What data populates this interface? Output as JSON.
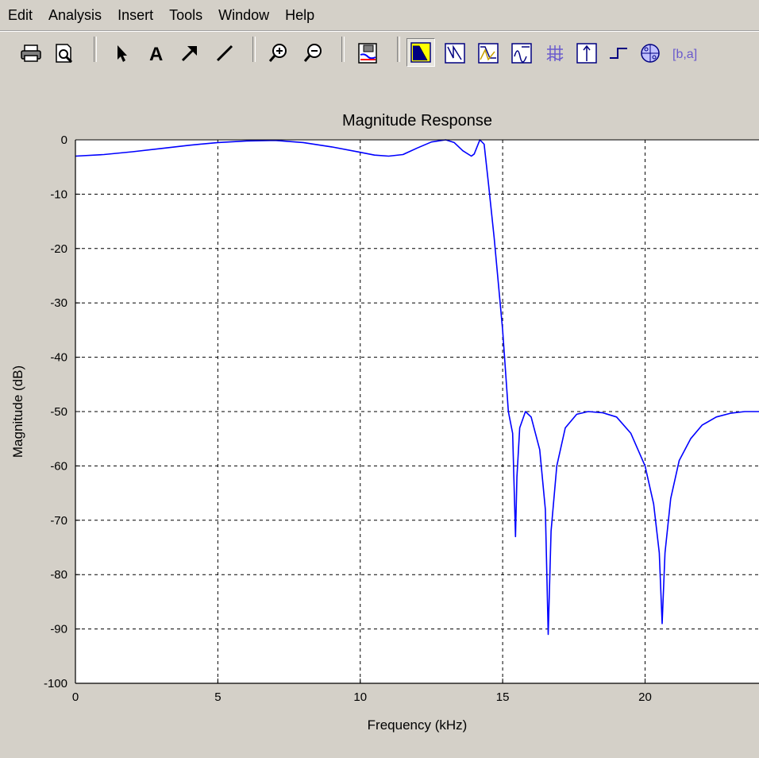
{
  "menubar": {
    "items": [
      "Edit",
      "Analysis",
      "Insert",
      "Tools",
      "Window",
      "Help"
    ]
  },
  "toolbar": {
    "buttons": [
      {
        "name": "print-icon"
      },
      {
        "name": "print-preview-icon"
      },
      {
        "name": "select-arrow-icon"
      },
      {
        "name": "insert-text-icon",
        "glyph": "A"
      },
      {
        "name": "insert-arrow-icon"
      },
      {
        "name": "insert-line-icon"
      },
      {
        "name": "zoom-in-icon"
      },
      {
        "name": "zoom-out-icon"
      },
      {
        "name": "filter-specs-icon"
      },
      {
        "name": "magnitude-response-icon",
        "pressed": true
      },
      {
        "name": "phase-response-icon"
      },
      {
        "name": "magnitude-phase-icon"
      },
      {
        "name": "group-delay-icon"
      },
      {
        "name": "impulse-response-icon"
      },
      {
        "name": "step-response-icon"
      },
      {
        "name": "pole-zero-icon"
      },
      {
        "name": "filter-coefficients-icon",
        "glyph": "[b,a]"
      }
    ],
    "accent": "#0000ff",
    "highlight": "#ffff00"
  },
  "chart_data": {
    "type": "line",
    "title": "Magnitude Response",
    "xlabel": "Frequency (kHz)",
    "ylabel": "Magnitude (dB)",
    "xlim": [
      0,
      24
    ],
    "ylim": [
      -100,
      0
    ],
    "xticks": [
      0,
      5,
      10,
      15,
      20
    ],
    "yticks": [
      0,
      -10,
      -20,
      -30,
      -40,
      -50,
      -60,
      -70,
      -80,
      -90,
      -100
    ],
    "grid": true,
    "series": [
      {
        "color": "#0000ff",
        "x": [
          0,
          1,
          2,
          3,
          4,
          5,
          6,
          7,
          8,
          9,
          10,
          10.5,
          11,
          11.5,
          12,
          12.5,
          13,
          13.3,
          13.6,
          13.9,
          14.0,
          14.2,
          14.35,
          14.5,
          14.7,
          15.0,
          15.2,
          15.35,
          15.45,
          15.5,
          15.6,
          15.8,
          16.0,
          16.3,
          16.5,
          16.6,
          16.7,
          16.9,
          17.2,
          17.6,
          18.0,
          18.5,
          19.0,
          19.5,
          20.0,
          20.3,
          20.5,
          20.6,
          20.7,
          20.9,
          21.2,
          21.6,
          22.0,
          22.5,
          23.0,
          23.5,
          24
        ],
        "y": [
          -3,
          -2.7,
          -2.2,
          -1.6,
          -1.0,
          -0.5,
          -0.2,
          -0.1,
          -0.5,
          -1.3,
          -2.3,
          -2.8,
          -3.0,
          -2.7,
          -1.5,
          -0.4,
          0,
          -0.5,
          -2.0,
          -3.0,
          -2.6,
          0,
          -0.8,
          -8,
          -18,
          -35,
          -50,
          -54,
          -73,
          -62,
          -53,
          -50,
          -51,
          -57,
          -68,
          -91,
          -72,
          -60,
          -53,
          -50.5,
          -50,
          -50.2,
          -51,
          -54,
          -60,
          -67,
          -76,
          -89,
          -76,
          -66,
          -59,
          -55,
          -52.5,
          -51,
          -50.3,
          -50,
          -50
        ]
      }
    ]
  }
}
